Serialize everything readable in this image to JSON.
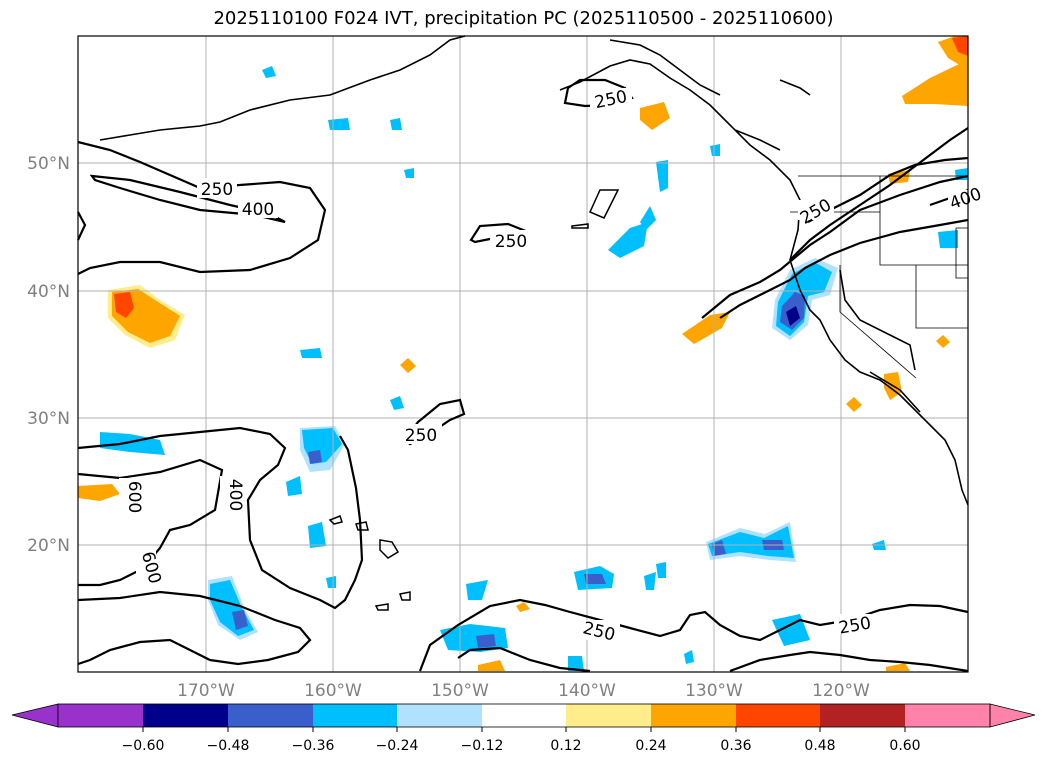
{
  "title": "2025110100 F024 IVT, precipitation PC (2025110500 - 2025110600)",
  "map": {
    "lon_ticks": [
      {
        "lon": -170,
        "label": "170°W"
      },
      {
        "lon": -160,
        "label": "160°W"
      },
      {
        "lon": -150,
        "label": "150°W"
      },
      {
        "lon": -140,
        "label": "140°W"
      },
      {
        "lon": -130,
        "label": "130°W"
      },
      {
        "lon": -120,
        "label": "120°W"
      }
    ],
    "lat_ticks": [
      {
        "lat": 20,
        "label": "20°N"
      },
      {
        "lat": 30,
        "label": "30°N"
      },
      {
        "lat": 40,
        "label": "40°N"
      },
      {
        "lat": 50,
        "label": "50°N"
      }
    ],
    "contour_labels": [
      "250",
      "400",
      "250",
      "250",
      "250",
      "400",
      "600",
      "600",
      "250",
      "250",
      "400",
      "250"
    ]
  },
  "colorbar": {
    "ticks": [
      "−0.60",
      "−0.48",
      "−0.36",
      "−0.24",
      "−0.12",
      "0.12",
      "0.24",
      "0.36",
      "0.48",
      "0.60"
    ],
    "colors": [
      "#9932cc",
      "#00008b",
      "#3a5fcd",
      "#00bfff",
      "#b0e2ff",
      "#ffffff",
      "#ffec8b",
      "#ffa500",
      "#ff4500",
      "#b22222",
      "#ff82ab",
      "#ff82ab"
    ]
  }
}
